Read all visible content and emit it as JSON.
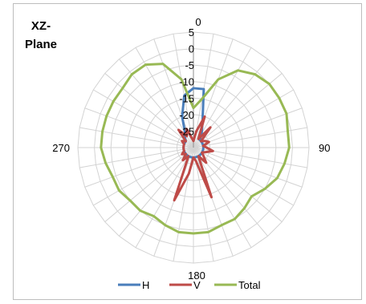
{
  "chart_data": {
    "type": "radar",
    "title_lines": [
      "XZ-",
      "Plane"
    ],
    "angle_labels": [
      {
        "angle": 0,
        "text": "0"
      },
      {
        "angle": 90,
        "text": "90"
      },
      {
        "angle": 180,
        "text": "180"
      },
      {
        "angle": 270,
        "text": "270"
      }
    ],
    "radial_ticks": [
      "5",
      "0",
      "-5",
      "-10",
      "-15",
      "-20",
      "-25"
    ],
    "rlim": [
      -30,
      5
    ],
    "angle_step": 10,
    "series": [
      {
        "name": "H",
        "color": "#4a7ebb",
        "values": [
          -12,
          -12,
          -22,
          -25,
          -27,
          -27,
          -27,
          -27,
          -27,
          -27,
          -27,
          -27,
          -27,
          -27,
          -27,
          -27,
          -27,
          -27,
          -27,
          -27,
          -27,
          -27,
          -27,
          -27,
          -27,
          -27,
          -27,
          -27,
          -27,
          -27,
          -27,
          -27,
          -26,
          -25,
          -20,
          -14
        ]
      },
      {
        "name": "V",
        "color": "#be4b48",
        "values": [
          -28,
          -25,
          -20,
          -27,
          -22,
          -27,
          -26,
          -25,
          -27,
          -26,
          -24,
          -26,
          -27,
          -26,
          -24,
          -27,
          -14,
          -26,
          -27,
          -22,
          -13,
          -27,
          -25,
          -27,
          -26,
          -27,
          -27,
          -27,
          -27,
          -27,
          -26,
          -27,
          -23,
          -26,
          -24,
          -27
        ]
      },
      {
        "name": "Total",
        "color": "#98b954",
        "values": [
          -18,
          -15,
          -8,
          -3,
          -1,
          0,
          0,
          0,
          -1,
          -1,
          -2,
          -3,
          -5,
          -7,
          -6,
          -5,
          -5,
          -4,
          -4,
          -4,
          -5,
          -6,
          -5,
          -5,
          -4,
          -4,
          -3,
          -2,
          -2,
          -2,
          -2,
          -2,
          -1,
          -1,
          -3,
          -9
        ]
      }
    ],
    "legend_position": "bottom",
    "grid": true
  }
}
